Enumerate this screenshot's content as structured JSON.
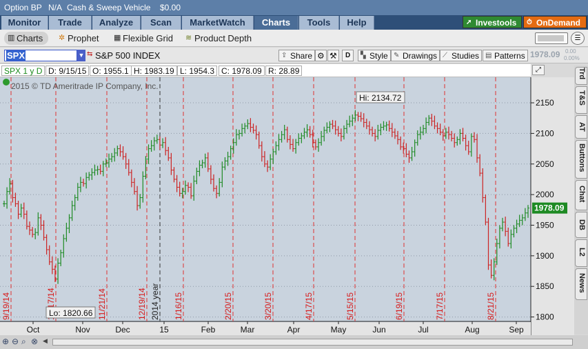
{
  "topbar": {
    "account": "Option BP",
    "account_value": "N/A",
    "cash_label": "Cash & Sweep Vehicle",
    "cash_value": "$0.00"
  },
  "tabs": [
    "Monitor",
    "Trade",
    "Analyze",
    "Scan",
    "MarketWatch",
    "Charts",
    "Tools",
    "Help"
  ],
  "active_tab": "Charts",
  "buttons": {
    "investools": "Investools",
    "ondemand": "OnDemand"
  },
  "subtabs": [
    "Charts",
    "Prophet",
    "Flexible Grid",
    "Product Depth"
  ],
  "symbol_bar": {
    "symbol": "SPX",
    "description": "S&P 500 INDEX",
    "share": "Share",
    "d": "D",
    "style": "Style",
    "drawings": "Drawings",
    "studies": "Studies",
    "patterns": "Patterns",
    "last_price": "1978.09",
    "change": "0.00",
    "change_pct": "0.00%"
  },
  "info_bar": {
    "period": "SPX 1 y D",
    "date": "D: 9/15/15",
    "open": "O: 1955.1",
    "high": "H: 1983.19",
    "low": "L: 1954.3",
    "close": "C: 1978.09",
    "range": "R: 28.89"
  },
  "side_tabs": [
    "Trd",
    "T&S",
    "AT",
    "Buttons",
    "Chat",
    "DB",
    "L2",
    "News"
  ],
  "chart_data": {
    "type": "line",
    "copyright": "2015 © TD Ameritrade IP Company, Inc.",
    "hi_label": "Hi: 2134.72",
    "lo_label": "Lo: 1820.66",
    "last_label": "1978.09",
    "year_label": "2014 year",
    "ylim": [
      1795,
      2185
    ],
    "yticks": [
      1800,
      1850,
      1900,
      1950,
      2000,
      2050,
      2100,
      2150
    ],
    "months": [
      "Oct",
      "Nov",
      "Dec",
      "15",
      "Feb",
      "Mar",
      "Apr",
      "May",
      "Jun",
      "Jul",
      "Aug",
      "Sep"
    ],
    "expirations": [
      "9/19/14",
      "10/17/14",
      "11/21/14",
      "12/19/14",
      "1/16/15",
      "2/20/15",
      "3/20/15",
      "4/17/15",
      "5/15/15",
      "6/19/15",
      "7/17/15",
      "8/21/15"
    ],
    "series": [
      {
        "values": [
          1985,
          2005,
          2018,
          1995,
          1985,
          1968,
          1978,
          1968,
          1948,
          1942,
          1935,
          1938,
          1962,
          1950,
          1930,
          1910,
          1890,
          1878,
          1862,
          1888,
          1905,
          1928,
          1945,
          1962,
          1982,
          1995,
          2012,
          2020,
          2018,
          2028,
          2032,
          2036,
          2040,
          2041,
          2038,
          2050,
          2052,
          2058,
          2062,
          2068,
          2075,
          2070,
          2062,
          2050,
          2036,
          2020,
          2005,
          1982,
          1995,
          2030,
          2058,
          2075,
          2080,
          2088,
          2090,
          2081,
          2085,
          2072,
          2060,
          2040,
          2025,
          2012,
          2002,
          2005,
          2015,
          2012,
          1998,
          2022,
          2038,
          2048,
          2052,
          2060,
          2042,
          2025,
          2010,
          2002,
          2020,
          2045,
          2055,
          2062,
          2075,
          2085,
          2098,
          2100,
          2108,
          2112,
          2116,
          2110,
          2105,
          2098,
          2080,
          2062,
          2050,
          2045,
          2058,
          2070,
          2080,
          2090,
          2098,
          2106,
          2090,
          2082,
          2075,
          2085,
          2092,
          2096,
          2102,
          2106,
          2098,
          2085,
          2078,
          2085,
          2095,
          2105,
          2110,
          2115,
          2112,
          2106,
          2100,
          2095,
          2108,
          2115,
          2120,
          2125,
          2130,
          2128,
          2124,
          2118,
          2112,
          2106,
          2100,
          2095,
          2105,
          2110,
          2112,
          2114,
          2108,
          2102,
          2096,
          2090,
          2078,
          2075,
          2066,
          2060,
          2070,
          2085,
          2098,
          2102,
          2108,
          2118,
          2125,
          2120,
          2112,
          2108,
          2102,
          2096,
          2102,
          2098,
          2092,
          2085,
          2090,
          2100,
          2092,
          2080,
          2070,
          2095,
          2090,
          2060,
          2035,
          1995,
          1955,
          1885,
          1868,
          1890,
          1920,
          1945,
          1955,
          1940,
          1920,
          1935,
          1945,
          1952,
          1958,
          1962,
          1970,
          1978
        ]
      }
    ]
  }
}
